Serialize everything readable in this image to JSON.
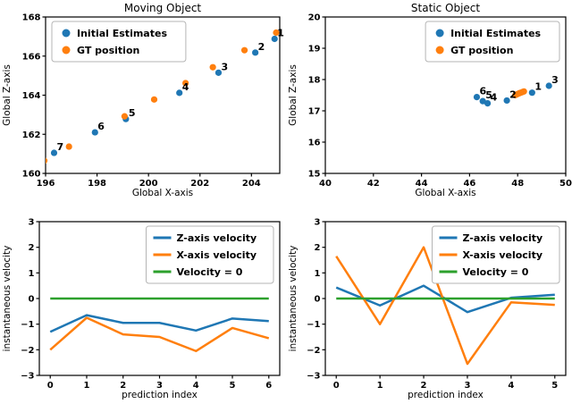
{
  "figure": {
    "background": "#ffffff"
  },
  "colors": {
    "blue": "#1f77b4",
    "orange": "#ff7f0e",
    "green": "#2ca02c",
    "axis": "#000000",
    "legend_border": "#b5b5b5",
    "legend_bg": "#ffffff"
  },
  "chart_data": [
    {
      "id": "moving-object-scatter",
      "type": "scatter",
      "title": "Moving Object",
      "xlabel": "Global X-axis",
      "ylabel": "Global Z-axis",
      "xlim": [
        196,
        205.1
      ],
      "ylim": [
        160,
        168
      ],
      "xticks": [
        196,
        198,
        200,
        202,
        204
      ],
      "yticks": [
        160,
        162,
        164,
        166,
        168
      ],
      "legend": {
        "position": "top-left",
        "entries": [
          {
            "label": "Initial Estimates",
            "color": "blue",
            "marker": "dot"
          },
          {
            "label": "GT position",
            "color": "orange",
            "marker": "dot"
          }
        ]
      },
      "series": [
        {
          "name": "Initial Estimates",
          "color": "blue",
          "points": [
            {
              "x": 204.9,
              "y": 166.88,
              "label": "1"
            },
            {
              "x": 204.15,
              "y": 166.18,
              "label": "2"
            },
            {
              "x": 202.72,
              "y": 165.15,
              "label": "3"
            },
            {
              "x": 201.2,
              "y": 164.12,
              "label": "4"
            },
            {
              "x": 199.12,
              "y": 162.78,
              "label": "5"
            },
            {
              "x": 197.92,
              "y": 162.1,
              "label": "6"
            },
            {
              "x": 196.33,
              "y": 161.05,
              "label": "7"
            }
          ]
        },
        {
          "name": "GT position",
          "color": "orange",
          "points": [
            {
              "x": 204.96,
              "y": 167.2
            },
            {
              "x": 203.73,
              "y": 166.3
            },
            {
              "x": 202.5,
              "y": 165.43
            },
            {
              "x": 201.44,
              "y": 164.62
            },
            {
              "x": 200.22,
              "y": 163.78
            },
            {
              "x": 199.07,
              "y": 162.92
            },
            {
              "x": 196.91,
              "y": 161.37
            },
            {
              "x": 195.95,
              "y": 160.65
            }
          ]
        }
      ]
    },
    {
      "id": "static-object-scatter",
      "type": "scatter",
      "title": "Static Object",
      "xlabel": "Global X-axis",
      "ylabel": "Global Z-axis",
      "xlim": [
        40,
        50
      ],
      "ylim": [
        15,
        20
      ],
      "xticks": [
        40,
        42,
        44,
        46,
        48,
        50
      ],
      "yticks": [
        15,
        16,
        17,
        18,
        19,
        20
      ],
      "legend": {
        "position": "top-right",
        "entries": [
          {
            "label": "Initial Estimates",
            "color": "blue",
            "marker": "dot"
          },
          {
            "label": "GT position",
            "color": "orange",
            "marker": "dot"
          }
        ]
      },
      "series": [
        {
          "name": "Initial Estimates",
          "color": "blue",
          "points": [
            {
              "x": 48.6,
              "y": 17.58,
              "label": "1"
            },
            {
              "x": 47.55,
              "y": 17.33,
              "label": "2"
            },
            {
              "x": 49.3,
              "y": 17.8,
              "label": "3"
            },
            {
              "x": 46.75,
              "y": 17.24,
              "label": "4"
            },
            {
              "x": 46.55,
              "y": 17.31,
              "label": "5"
            },
            {
              "x": 46.3,
              "y": 17.44,
              "label": "6"
            }
          ]
        },
        {
          "name": "GT position",
          "color": "orange",
          "points": [
            {
              "x": 47.9,
              "y": 17.5
            },
            {
              "x": 47.98,
              "y": 17.53
            },
            {
              "x": 48.06,
              "y": 17.56
            },
            {
              "x": 48.13,
              "y": 17.58
            },
            {
              "x": 48.2,
              "y": 17.6
            },
            {
              "x": 48.26,
              "y": 17.62
            }
          ]
        }
      ]
    },
    {
      "id": "moving-object-velocity",
      "type": "line",
      "title": "",
      "xlabel": "prediction index",
      "ylabel": "instantaneous velocity",
      "xlim": [
        -0.3,
        6.3
      ],
      "ylim": [
        -3,
        3
      ],
      "xticks": [
        0,
        1,
        2,
        3,
        4,
        5,
        6
      ],
      "yticks": [
        -3,
        -2,
        -1,
        0,
        1,
        2,
        3
      ],
      "x": [
        0,
        1,
        2,
        3,
        4,
        5,
        6
      ],
      "legend": {
        "position": "top-right",
        "entries": [
          {
            "label": "Z-axis velocity",
            "color": "blue",
            "marker": "line"
          },
          {
            "label": "X-axis velocity",
            "color": "orange",
            "marker": "line"
          },
          {
            "label": "Velocity = 0",
            "color": "green",
            "marker": "line"
          }
        ]
      },
      "series": [
        {
          "name": "Z-axis velocity",
          "color": "blue",
          "values": [
            -1.3,
            -0.65,
            -0.95,
            -0.95,
            -1.25,
            -0.78,
            -0.88
          ]
        },
        {
          "name": "X-axis velocity",
          "color": "orange",
          "values": [
            -2.0,
            -0.75,
            -1.4,
            -1.5,
            -2.05,
            -1.15,
            -1.55
          ]
        },
        {
          "name": "Velocity = 0",
          "color": "green",
          "values": [
            0,
            0,
            0,
            0,
            0,
            0,
            0
          ]
        }
      ]
    },
    {
      "id": "static-object-velocity",
      "type": "line",
      "title": "",
      "xlabel": "prediction index",
      "ylabel": "instantaneous velocity",
      "xlim": [
        -0.25,
        5.25
      ],
      "ylim": [
        -3,
        3
      ],
      "xticks": [
        0,
        1,
        2,
        3,
        4,
        5
      ],
      "yticks": [
        -3,
        -2,
        -1,
        0,
        1,
        2,
        3
      ],
      "x": [
        0,
        1,
        2,
        3,
        4,
        5
      ],
      "legend": {
        "position": "top-right",
        "entries": [
          {
            "label": "Z-axis velocity",
            "color": "blue",
            "marker": "line"
          },
          {
            "label": "X-axis velocity",
            "color": "orange",
            "marker": "line"
          },
          {
            "label": "Velocity = 0",
            "color": "green",
            "marker": "line"
          }
        ]
      },
      "series": [
        {
          "name": "Z-axis velocity",
          "color": "blue",
          "values": [
            0.43,
            -0.27,
            0.5,
            -0.53,
            0.03,
            0.15
          ]
        },
        {
          "name": "X-axis velocity",
          "color": "orange",
          "values": [
            1.65,
            -1.0,
            2.0,
            -2.55,
            -0.15,
            -0.25
          ]
        },
        {
          "name": "Velocity = 0",
          "color": "green",
          "values": [
            0,
            0,
            0,
            0,
            0,
            0
          ]
        }
      ]
    }
  ]
}
